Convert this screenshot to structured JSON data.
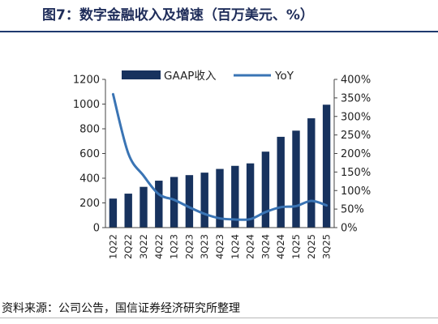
{
  "title": "图7：数字金融收入及增速（百万美元、%）",
  "source_note": "资料来源：公司公告，国信证券经济研究所整理",
  "colors": {
    "bar": "#17325e",
    "line": "#3a74b4",
    "title": "#1f2d5a",
    "rule": "#1f3a6e"
  },
  "chart_data": {
    "type": "bar",
    "categories": [
      "1Q22",
      "2Q22",
      "3Q22",
      "4Q22",
      "1Q23",
      "2Q23",
      "3Q23",
      "4Q23",
      "1Q24",
      "2Q24",
      "3Q24",
      "4Q24",
      "1Q25",
      "2Q25",
      "3Q25"
    ],
    "series": [
      {
        "name": "GAAP收入",
        "type": "bar",
        "axis": "left",
        "values": [
          235,
          275,
          330,
          380,
          410,
          425,
          445,
          475,
          500,
          520,
          615,
          735,
          785,
          885,
          995
        ]
      },
      {
        "name": "YoY",
        "type": "line",
        "axis": "right",
        "values": [
          3.6,
          2.0,
          1.4,
          0.9,
          0.75,
          0.55,
          0.37,
          0.25,
          0.22,
          0.23,
          0.42,
          0.55,
          0.58,
          0.72,
          0.6
        ]
      }
    ],
    "y_left": {
      "min": 0,
      "max": 1200,
      "step": 200,
      "tick_labels": [
        "0",
        "200",
        "400",
        "600",
        "800",
        "1000",
        "1200"
      ]
    },
    "y_right": {
      "min": 0,
      "max": 4.0,
      "step": 0.5,
      "tick_labels": [
        "0%",
        "50%",
        "100%",
        "150%",
        "200%",
        "250%",
        "300%",
        "350%",
        "400%"
      ]
    },
    "legend": {
      "position": "top",
      "bar_label": "GAAP收入",
      "line_label": "YoY"
    },
    "grid": false
  }
}
